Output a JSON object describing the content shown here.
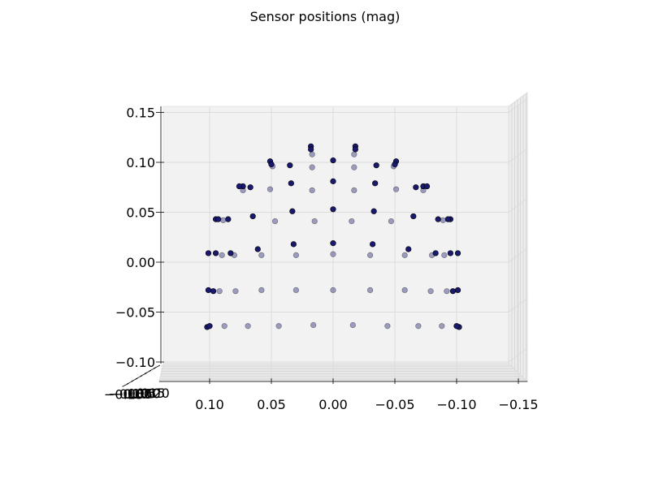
{
  "chart_data": {
    "type": "scatter",
    "title": "Sensor positions (mag)",
    "xlabel": "",
    "ylabel": "",
    "x_inverted": true,
    "xlim": [
      0.15,
      -0.15
    ],
    "ylim": [
      -0.1,
      0.15
    ],
    "grid": true,
    "marker_color": "#191970",
    "x_ticks": [
      "0.10",
      "0.05",
      "0.00",
      "−0.05",
      "−0.10",
      "−0.15"
    ],
    "y_ticks": [
      "0.15",
      "0.10",
      "0.05",
      "0.00",
      "−0.05",
      "−0.10"
    ],
    "depth_ticks": [
      "0.20",
      "0.15",
      "0.10",
      "0.05",
      "0.00",
      "−0.05",
      "−0.10",
      "−0.15"
    ],
    "series": [
      {
        "layer": "front",
        "points": [
          [
            0.018,
            0.116
          ],
          [
            -0.018,
            0.116
          ],
          [
            0.018,
            0.113
          ],
          [
            -0.018,
            0.113
          ],
          [
            0.0,
            0.102
          ],
          [
            0.051,
            0.101
          ],
          [
            -0.051,
            0.101
          ],
          [
            0.05,
            0.098
          ],
          [
            -0.05,
            0.098
          ],
          [
            0.035,
            0.097
          ],
          [
            -0.035,
            0.097
          ],
          [
            0.0,
            0.081
          ],
          [
            0.034,
            0.079
          ],
          [
            -0.034,
            0.079
          ],
          [
            0.073,
            0.076
          ],
          [
            -0.073,
            0.076
          ],
          [
            0.076,
            0.076
          ],
          [
            -0.076,
            0.076
          ],
          [
            0.067,
            0.075
          ],
          [
            -0.067,
            0.075
          ],
          [
            0.0,
            0.053
          ],
          [
            0.033,
            0.051
          ],
          [
            -0.033,
            0.051
          ],
          [
            0.065,
            0.046
          ],
          [
            -0.065,
            0.046
          ],
          [
            0.085,
            0.043
          ],
          [
            -0.085,
            0.043
          ],
          [
            0.095,
            0.043
          ],
          [
            -0.095,
            0.043
          ],
          [
            0.093,
            0.043
          ],
          [
            -0.093,
            0.043
          ],
          [
            0.0,
            0.019
          ],
          [
            0.032,
            0.018
          ],
          [
            -0.032,
            0.018
          ],
          [
            0.061,
            0.013
          ],
          [
            -0.061,
            0.013
          ],
          [
            0.083,
            0.009
          ],
          [
            -0.083,
            0.009
          ],
          [
            0.095,
            0.009
          ],
          [
            -0.095,
            0.009
          ],
          [
            0.101,
            0.009
          ],
          [
            -0.101,
            0.009
          ],
          [
            0.101,
            -0.028
          ],
          [
            -0.101,
            -0.028
          ],
          [
            0.097,
            -0.029
          ],
          [
            -0.097,
            -0.029
          ],
          [
            0.102,
            -0.065
          ],
          [
            -0.102,
            -0.065
          ],
          [
            0.1,
            -0.064
          ],
          [
            -0.1,
            -0.064
          ]
        ]
      },
      {
        "layer": "back",
        "points": [
          [
            0.017,
            0.108
          ],
          [
            -0.017,
            0.108
          ],
          [
            0.049,
            0.096
          ],
          [
            -0.049,
            0.096
          ],
          [
            0.017,
            0.095
          ],
          [
            -0.017,
            0.095
          ],
          [
            0.051,
            0.073
          ],
          [
            -0.051,
            0.073
          ],
          [
            0.073,
            0.072
          ],
          [
            -0.073,
            0.072
          ],
          [
            0.017,
            0.072
          ],
          [
            -0.017,
            0.072
          ],
          [
            0.089,
            0.042
          ],
          [
            -0.089,
            0.042
          ],
          [
            0.047,
            0.041
          ],
          [
            -0.047,
            0.041
          ],
          [
            0.015,
            0.041
          ],
          [
            -0.015,
            0.041
          ],
          [
            0.09,
            0.007
          ],
          [
            -0.09,
            0.007
          ],
          [
            0.08,
            0.007
          ],
          [
            -0.08,
            0.007
          ],
          [
            0.058,
            0.007
          ],
          [
            -0.058,
            0.007
          ],
          [
            0.03,
            0.007
          ],
          [
            -0.03,
            0.007
          ],
          [
            0.0,
            0.008
          ],
          [
            0.092,
            -0.029
          ],
          [
            -0.092,
            -0.029
          ],
          [
            0.079,
            -0.029
          ],
          [
            -0.079,
            -0.029
          ],
          [
            0.058,
            -0.028
          ],
          [
            -0.058,
            -0.028
          ],
          [
            0.03,
            -0.028
          ],
          [
            -0.03,
            -0.028
          ],
          [
            0.0,
            -0.028
          ],
          [
            0.088,
            -0.064
          ],
          [
            -0.088,
            -0.064
          ],
          [
            0.069,
            -0.064
          ],
          [
            -0.069,
            -0.064
          ],
          [
            0.044,
            -0.064
          ],
          [
            -0.044,
            -0.064
          ],
          [
            0.016,
            -0.063
          ],
          [
            -0.016,
            -0.063
          ]
        ]
      }
    ]
  }
}
